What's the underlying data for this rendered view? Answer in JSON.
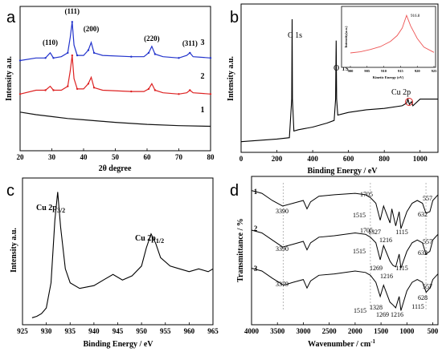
{
  "chart_data": [
    {
      "panel": "a",
      "type": "line",
      "xlabel": "2θ degree",
      "ylabel": "Intensity a.u.",
      "xlim": [
        20,
        80
      ],
      "xticks": [
        "20",
        "30",
        "40",
        "50",
        "60",
        "70",
        "80"
      ],
      "series": [
        {
          "name": "3",
          "color": "#2233cc",
          "x": [
            20,
            25,
            28,
            29.5,
            30.5,
            33,
            35,
            35.8,
            36.4,
            37,
            38,
            40,
            41.5,
            42.4,
            43.3,
            46,
            55,
            59,
            60.5,
            61.5,
            62.5,
            65,
            70,
            72.5,
            73.5,
            74.5,
            80
          ],
          "y": [
            0.7,
            0.72,
            0.72,
            0.76,
            0.72,
            0.73,
            0.76,
            0.88,
            1.0,
            0.82,
            0.74,
            0.74,
            0.78,
            0.84,
            0.76,
            0.74,
            0.73,
            0.73,
            0.76,
            0.81,
            0.75,
            0.73,
            0.72,
            0.74,
            0.76,
            0.73,
            0.72
          ]
        },
        {
          "name": "2",
          "color": "#dd2222",
          "x": [
            20,
            25,
            28,
            29.5,
            30.5,
            33,
            35,
            35.8,
            36.4,
            37,
            38,
            40,
            41.5,
            42.4,
            43.3,
            46,
            55,
            59,
            60.5,
            61.5,
            62.5,
            65,
            70,
            72.5,
            73.5,
            74.5,
            80
          ],
          "y": [
            0.44,
            0.47,
            0.47,
            0.5,
            0.47,
            0.47,
            0.5,
            0.62,
            0.74,
            0.56,
            0.48,
            0.48,
            0.52,
            0.57,
            0.49,
            0.47,
            0.46,
            0.46,
            0.48,
            0.52,
            0.47,
            0.45,
            0.44,
            0.45,
            0.47,
            0.45,
            0.44
          ]
        },
        {
          "name": "1",
          "color": "#111111",
          "x": [
            20,
            25,
            30,
            35,
            40,
            50,
            60,
            70,
            80
          ],
          "y": [
            0.3,
            0.28,
            0.265,
            0.25,
            0.24,
            0.22,
            0.205,
            0.195,
            0.19
          ]
        }
      ],
      "annotations": [
        {
          "text": "(110)",
          "x": 29.5
        },
        {
          "text": "(111)",
          "x": 36.4
        },
        {
          "text": "(200)",
          "x": 42.4
        },
        {
          "text": "(220)",
          "x": 61.5
        },
        {
          "text": "(311)",
          "x": 73.5
        }
      ],
      "series_labels": [
        "3",
        "2",
        "1"
      ]
    },
    {
      "panel": "b",
      "type": "line",
      "xlabel": "Binding Energy / eV",
      "ylabel": "Intensity a.u.",
      "xlim": [
        0,
        1100
      ],
      "xticks": [
        "0",
        "200",
        "400",
        "600",
        "800",
        "1000"
      ],
      "x": [
        0,
        100,
        200,
        270,
        283,
        285,
        287,
        295,
        320,
        400,
        480,
        520,
        528,
        531,
        534,
        540,
        600,
        700,
        800,
        900,
        925,
        932,
        940,
        952,
        960,
        1000,
        1050,
        1100
      ],
      "y": [
        0.08,
        0.09,
        0.1,
        0.11,
        0.4,
        1.0,
        0.4,
        0.16,
        0.17,
        0.19,
        0.22,
        0.24,
        0.4,
        0.84,
        0.4,
        0.28,
        0.3,
        0.32,
        0.33,
        0.35,
        0.37,
        0.4,
        0.36,
        0.38,
        0.35,
        0.4,
        0.4,
        0.4
      ],
      "annotations": [
        "C 1s",
        "O 1s",
        "Cu 2p"
      ],
      "inset": {
        "xlabel": "Kinetic Energy (eV)",
        "ylabel": "Intensity(a.u.)",
        "xlim": [
          900,
          925
        ],
        "xticks": [
          "900",
          "905",
          "910",
          "915",
          "920",
          "925"
        ],
        "peak_label": "916.8",
        "x": [
          900,
          903,
          906,
          909,
          912,
          914,
          915.5,
          916.8,
          918,
          920,
          922,
          925
        ],
        "y": [
          0.25,
          0.27,
          0.31,
          0.36,
          0.45,
          0.55,
          0.68,
          0.9,
          0.72,
          0.5,
          0.35,
          0.26
        ]
      }
    },
    {
      "panel": "c",
      "type": "line",
      "xlabel": "Binding Energy / eV",
      "ylabel": "Intensity a.u.",
      "xlim": [
        925,
        965
      ],
      "xticks": [
        "925",
        "930",
        "935",
        "940",
        "945",
        "950",
        "955",
        "960",
        "965"
      ],
      "x": [
        927,
        928,
        929,
        930,
        931,
        931.8,
        932.4,
        933,
        934,
        935,
        937,
        940,
        942,
        944,
        946,
        948,
        950,
        951,
        952,
        953,
        954,
        956,
        958,
        960,
        962,
        964,
        965
      ],
      "y": [
        0.05,
        0.06,
        0.08,
        0.12,
        0.3,
        0.75,
        0.95,
        0.7,
        0.4,
        0.3,
        0.26,
        0.28,
        0.32,
        0.36,
        0.32,
        0.35,
        0.42,
        0.55,
        0.65,
        0.58,
        0.48,
        0.42,
        0.4,
        0.38,
        0.4,
        0.38,
        0.4
      ],
      "annotations": [
        {
          "main": "Cu 2p",
          "sub": "3/2"
        },
        {
          "main": "Cu 2p",
          "sub": "1/2"
        }
      ]
    },
    {
      "panel": "d",
      "type": "line",
      "xlabel": "Wavenumber / cm",
      "xlabel_sup": "-1",
      "ylabel": "Transmittance / %",
      "xlim": [
        4000,
        400
      ],
      "xticks": [
        "4000",
        "3500",
        "3000",
        "2500",
        "2000",
        "1500",
        "1000",
        "500"
      ],
      "series": [
        {
          "name": "1",
          "x": [
            4000,
            3800,
            3600,
            3400,
            3200,
            3000,
            2930,
            2860,
            2700,
            2400,
            2000,
            1800,
            1705,
            1600,
            1515,
            1450,
            1327,
            1290,
            1216,
            1150,
            1115,
            1000,
            900,
            800,
            700,
            632,
            557,
            500,
            400
          ],
          "y": [
            0.95,
            0.93,
            0.88,
            0.84,
            0.86,
            0.88,
            0.82,
            0.87,
            0.91,
            0.92,
            0.93,
            0.92,
            0.9,
            0.86,
            0.74,
            0.84,
            0.72,
            0.82,
            0.7,
            0.8,
            0.68,
            0.8,
            0.86,
            0.88,
            0.86,
            0.79,
            0.8,
            0.88,
            0.92
          ]
        },
        {
          "name": "2",
          "x": [
            4000,
            3800,
            3600,
            3400,
            3200,
            3000,
            2930,
            2860,
            2700,
            2400,
            2000,
            1800,
            1705,
            1600,
            1515,
            1450,
            1327,
            1269,
            1216,
            1150,
            1115,
            1000,
            900,
            800,
            700,
            632,
            557,
            500,
            400
          ],
          "y": [
            0.67,
            0.65,
            0.6,
            0.55,
            0.57,
            0.59,
            0.53,
            0.58,
            0.62,
            0.63,
            0.65,
            0.64,
            0.62,
            0.58,
            0.46,
            0.56,
            0.45,
            0.42,
            0.41,
            0.5,
            0.4,
            0.52,
            0.58,
            0.6,
            0.58,
            0.5,
            0.52,
            0.6,
            0.64
          ]
        },
        {
          "name": "3",
          "x": [
            4000,
            3800,
            3600,
            3379,
            3200,
            3000,
            2930,
            2860,
            2700,
            2400,
            2000,
            1800,
            1705,
            1600,
            1515,
            1450,
            1328,
            1269,
            1216,
            1150,
            1115,
            1000,
            900,
            800,
            700,
            628,
            557,
            500,
            400
          ],
          "y": [
            0.4,
            0.38,
            0.33,
            0.28,
            0.3,
            0.32,
            0.26,
            0.31,
            0.35,
            0.36,
            0.38,
            0.37,
            0.35,
            0.3,
            0.2,
            0.28,
            0.16,
            0.14,
            0.12,
            0.2,
            0.1,
            0.24,
            0.3,
            0.32,
            0.3,
            0.23,
            0.26,
            0.32,
            0.36
          ]
        }
      ],
      "annotations": [
        "1705",
        "1515",
        "1327",
        "1216",
        "1115",
        "557",
        "632",
        "3390",
        "1705",
        "1515",
        "1269",
        "1216",
        "1115",
        "557",
        "632",
        "3390",
        "3379",
        "1515",
        "1328",
        "1269",
        "1216",
        "1115",
        "557",
        "628"
      ]
    }
  ],
  "panel_letters": [
    "a",
    "b",
    "c",
    "d"
  ]
}
